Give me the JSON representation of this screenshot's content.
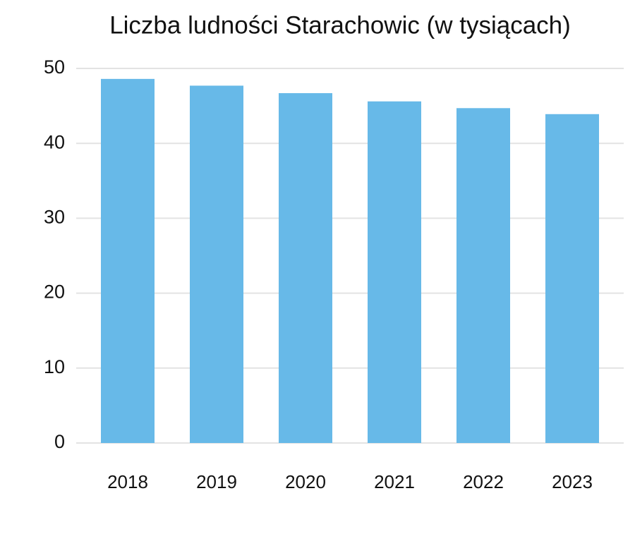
{
  "chart_data": {
    "type": "bar",
    "title": "Liczba ludności Starachowic (w tysiącach)",
    "categories": [
      "2018",
      "2019",
      "2020",
      "2021",
      "2022",
      "2023"
    ],
    "values": [
      48.6,
      47.7,
      46.7,
      45.6,
      44.7,
      43.9
    ],
    "color": "#67b9e8",
    "ylim": [
      0,
      50
    ],
    "yticks": [
      0,
      10,
      20,
      30,
      40,
      50
    ],
    "grid": true
  }
}
